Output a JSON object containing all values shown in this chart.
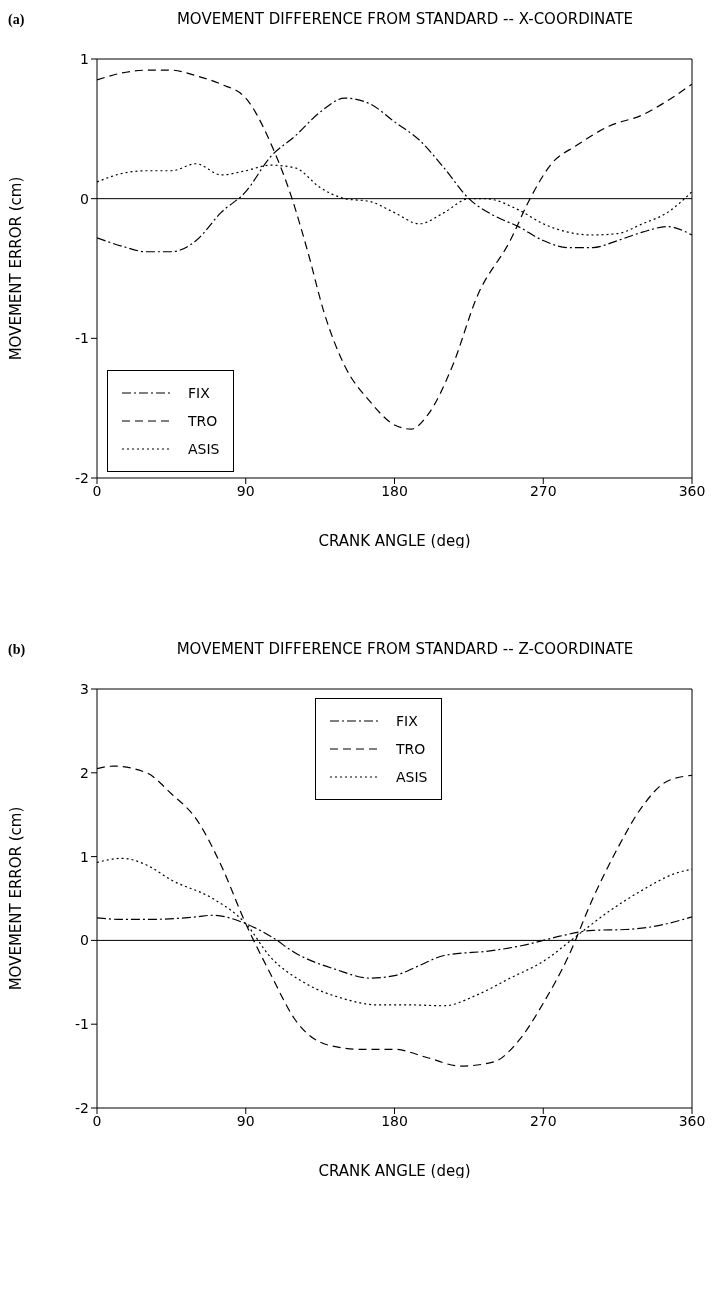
{
  "chart_data": [
    {
      "type": "line",
      "title": "MOVEMENT DIFFERENCE FROM STANDARD -- X-COORDINATE",
      "annotations": [
        "(a)"
      ],
      "xlabel": "CRANK ANGLE (deg)",
      "ylabel": "MOVEMENT ERROR (cm)",
      "xlim": [
        0,
        360
      ],
      "xticks": [
        0,
        90,
        180,
        270,
        360
      ],
      "ylim": [
        -2,
        1
      ],
      "yticks": [
        -2,
        -1,
        0,
        1
      ],
      "legend": "bottom left",
      "marker": "none",
      "ref_lines": [
        {
          "axis": "y",
          "value": 0,
          "color": "#000000",
          "line_style": "solid"
        }
      ],
      "series": [
        {
          "name": "FIX",
          "color": "#000000",
          "line_style": "dashdot",
          "x": [
            0,
            15,
            30,
            45,
            60,
            75,
            90,
            105,
            120,
            135,
            150,
            165,
            180,
            195,
            210,
            225,
            240,
            255,
            270,
            285,
            300,
            315,
            330,
            345,
            360
          ],
          "values": [
            -0.28,
            -0.34,
            -0.38,
            -0.38,
            -0.3,
            -0.1,
            0.05,
            0.3,
            0.45,
            0.62,
            0.72,
            0.68,
            0.55,
            0.42,
            0.22,
            0.0,
            -0.12,
            -0.2,
            -0.3,
            -0.35,
            -0.35,
            -0.3,
            -0.24,
            -0.2,
            -0.26
          ]
        },
        {
          "name": "TRO",
          "color": "#000000",
          "line_style": "dashed",
          "x": [
            0,
            15,
            30,
            45,
            60,
            75,
            90,
            105,
            118,
            128,
            137,
            150,
            165,
            180,
            190,
            200,
            215,
            230,
            250,
            262,
            275,
            290,
            310,
            330,
            345,
            360
          ],
          "values": [
            0.85,
            0.9,
            0.92,
            0.92,
            0.88,
            0.82,
            0.72,
            0.4,
            0.0,
            -0.4,
            -0.8,
            -1.2,
            -1.45,
            -1.62,
            -1.65,
            -1.55,
            -1.2,
            -0.7,
            -0.3,
            0.0,
            0.25,
            0.38,
            0.52,
            0.6,
            0.7,
            0.82
          ]
        },
        {
          "name": "ASIS",
          "color": "#000000",
          "line_style": "dotted",
          "x": [
            0,
            15,
            30,
            45,
            60,
            75,
            90,
            105,
            120,
            135,
            150,
            165,
            180,
            195,
            210,
            225,
            235,
            255,
            270,
            285,
            300,
            315,
            330,
            345,
            360
          ],
          "values": [
            0.12,
            0.18,
            0.2,
            0.2,
            0.25,
            0.17,
            0.2,
            0.24,
            0.22,
            0.08,
            0.0,
            -0.02,
            -0.1,
            -0.18,
            -0.1,
            0.0,
            0.0,
            -0.08,
            -0.18,
            -0.24,
            -0.26,
            -0.25,
            -0.18,
            -0.1,
            0.05
          ]
        }
      ]
    },
    {
      "type": "line",
      "title": "MOVEMENT DIFFERENCE FROM STANDARD -- Z-COORDINATE",
      "annotations": [
        "(b)"
      ],
      "xlabel": "CRANK ANGLE (deg)",
      "ylabel": "MOVEMENT ERROR (cm)",
      "xlim": [
        0,
        360
      ],
      "xticks": [
        0,
        90,
        180,
        270,
        360
      ],
      "ylim": [
        -2,
        3
      ],
      "yticks": [
        -2,
        -1,
        0,
        1,
        2,
        3
      ],
      "legend": "top",
      "marker": "none",
      "ref_lines": [
        {
          "axis": "y",
          "value": 0,
          "color": "#000000",
          "line_style": "solid"
        }
      ],
      "series": [
        {
          "name": "FIX",
          "color": "#000000",
          "line_style": "dashdot",
          "x": [
            0,
            15,
            30,
            60,
            70,
            90,
            105,
            120,
            145,
            165,
            180,
            195,
            210,
            240,
            260,
            280,
            300,
            320,
            335,
            360
          ],
          "values": [
            0.27,
            0.25,
            0.25,
            0.28,
            0.3,
            0.2,
            0.05,
            -0.15,
            -0.35,
            -0.45,
            -0.42,
            -0.3,
            -0.18,
            -0.12,
            -0.05,
            0.05,
            0.12,
            0.13,
            0.16,
            0.28
          ]
        },
        {
          "name": "TRO",
          "color": "#000000",
          "line_style": "dashed",
          "x": [
            0,
            10,
            30,
            45,
            60,
            75,
            90,
            105,
            120,
            140,
            160,
            180,
            200,
            220,
            240,
            255,
            270,
            285,
            300,
            315,
            330,
            345,
            360
          ],
          "values": [
            2.05,
            2.08,
            2.0,
            1.75,
            1.45,
            0.9,
            0.2,
            -0.4,
            -0.95,
            -1.25,
            -1.3,
            -1.3,
            -1.4,
            -1.5,
            -1.45,
            -1.2,
            -0.75,
            -0.2,
            0.5,
            1.1,
            1.6,
            1.9,
            1.97
          ]
        },
        {
          "name": "ASIS",
          "color": "#000000",
          "line_style": "dotted",
          "x": [
            0,
            15,
            30,
            45,
            70,
            90,
            105,
            125,
            150,
            170,
            190,
            210,
            230,
            250,
            270,
            290,
            310,
            330,
            350,
            360
          ],
          "values": [
            0.93,
            0.98,
            0.9,
            0.72,
            0.5,
            0.2,
            -0.2,
            -0.5,
            -0.7,
            -0.77,
            -0.77,
            -0.78,
            -0.65,
            -0.45,
            -0.25,
            0.05,
            0.35,
            0.6,
            0.8,
            0.85
          ]
        }
      ]
    }
  ]
}
